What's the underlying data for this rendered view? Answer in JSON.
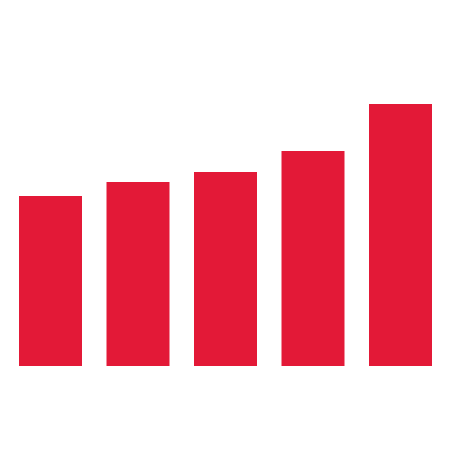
{
  "chart_data": {
    "type": "bar",
    "categories": [
      "",
      "",
      "",
      "",
      ""
    ],
    "values": [
      170,
      184,
      194,
      215,
      262
    ],
    "ylim": [
      0,
      262
    ],
    "grid": false,
    "legend": "none",
    "bar_color": "#E31937"
  }
}
